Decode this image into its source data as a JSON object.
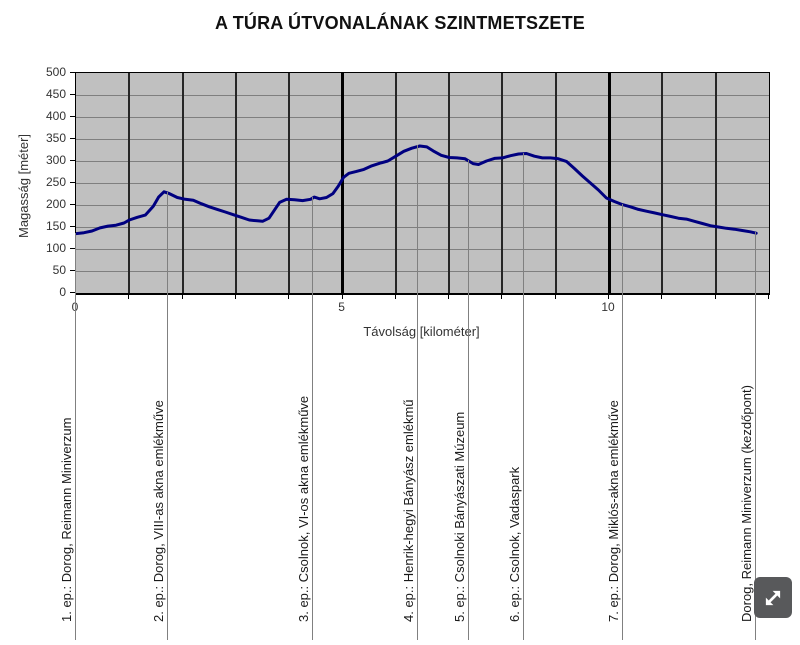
{
  "title": "A TÚRA ÚTVONALÁNAK SZINTMETSZETE",
  "chart_data": {
    "type": "line",
    "title": "A TÚRA ÚTVONALÁNAK SZINTMETSZETE",
    "xlabel": "Távolság [kilométer]",
    "ylabel": "Magasság [méter]",
    "xlim": [
      0,
      13
    ],
    "ylim": [
      0,
      500
    ],
    "y_tick_step": 50,
    "x_tick_step": 1,
    "x_tick_labels": [
      {
        "value": 0,
        "label": "0"
      },
      {
        "value": 5,
        "label": "5"
      },
      {
        "value": 10,
        "label": "10"
      }
    ],
    "x_thick_gridlines": [
      5,
      10
    ],
    "grid": "on",
    "legend": "none",
    "plot_bg_color": "#c0c0c0",
    "h_grid_color": "#7f7f7f",
    "v_grid_color": "#262626",
    "line_color": "#000080",
    "series": [
      {
        "name": "elevation-profile",
        "points": [
          [
            0.0,
            135
          ],
          [
            0.15,
            137
          ],
          [
            0.3,
            141
          ],
          [
            0.45,
            148
          ],
          [
            0.6,
            152
          ],
          [
            0.75,
            154
          ],
          [
            0.9,
            159
          ],
          [
            1.0,
            166
          ],
          [
            1.15,
            172
          ],
          [
            1.3,
            177
          ],
          [
            1.45,
            197
          ],
          [
            1.55,
            218
          ],
          [
            1.65,
            230
          ],
          [
            1.75,
            226
          ],
          [
            1.9,
            217
          ],
          [
            2.05,
            213
          ],
          [
            2.2,
            211
          ],
          [
            2.35,
            203
          ],
          [
            2.5,
            196
          ],
          [
            2.65,
            190
          ],
          [
            2.8,
            184
          ],
          [
            2.95,
            178
          ],
          [
            3.1,
            172
          ],
          [
            3.25,
            166
          ],
          [
            3.4,
            164
          ],
          [
            3.5,
            163
          ],
          [
            3.62,
            170
          ],
          [
            3.72,
            188
          ],
          [
            3.82,
            206
          ],
          [
            3.95,
            213
          ],
          [
            4.1,
            212
          ],
          [
            4.25,
            210
          ],
          [
            4.4,
            213
          ],
          [
            4.47,
            218
          ],
          [
            4.57,
            214
          ],
          [
            4.7,
            217
          ],
          [
            4.82,
            226
          ],
          [
            4.92,
            243
          ],
          [
            5.02,
            263
          ],
          [
            5.12,
            272
          ],
          [
            5.25,
            276
          ],
          [
            5.4,
            281
          ],
          [
            5.55,
            289
          ],
          [
            5.7,
            295
          ],
          [
            5.85,
            300
          ],
          [
            6.0,
            311
          ],
          [
            6.15,
            322
          ],
          [
            6.3,
            329
          ],
          [
            6.45,
            334
          ],
          [
            6.58,
            332
          ],
          [
            6.7,
            323
          ],
          [
            6.85,
            313
          ],
          [
            7.0,
            308
          ],
          [
            7.15,
            307
          ],
          [
            7.3,
            305
          ],
          [
            7.45,
            294
          ],
          [
            7.55,
            292
          ],
          [
            7.7,
            300
          ],
          [
            7.85,
            306
          ],
          [
            8.0,
            307
          ],
          [
            8.15,
            312
          ],
          [
            8.3,
            316
          ],
          [
            8.45,
            317
          ],
          [
            8.6,
            311
          ],
          [
            8.75,
            307
          ],
          [
            8.9,
            307
          ],
          [
            9.05,
            305
          ],
          [
            9.2,
            299
          ],
          [
            9.35,
            283
          ],
          [
            9.5,
            266
          ],
          [
            9.65,
            250
          ],
          [
            9.8,
            234
          ],
          [
            9.95,
            216
          ],
          [
            10.1,
            208
          ],
          [
            10.25,
            201
          ],
          [
            10.4,
            196
          ],
          [
            10.55,
            190
          ],
          [
            10.7,
            186
          ],
          [
            10.85,
            182
          ],
          [
            11.0,
            178
          ],
          [
            11.15,
            174
          ],
          [
            11.3,
            170
          ],
          [
            11.45,
            168
          ],
          [
            11.6,
            163
          ],
          [
            11.75,
            158
          ],
          [
            11.9,
            153
          ],
          [
            12.05,
            150
          ],
          [
            12.2,
            147
          ],
          [
            12.35,
            145
          ],
          [
            12.5,
            142
          ],
          [
            12.65,
            139
          ],
          [
            12.76,
            136
          ]
        ]
      }
    ],
    "waypoints": [
      {
        "km": 0.0,
        "label": "1. ep.: Dorog, Reimann Miniverzum"
      },
      {
        "km": 1.73,
        "label": "2. ep.: Dorog, VIII-as akna emlékműve"
      },
      {
        "km": 4.45,
        "label": "3. ep.: Csolnok, VI-os akna emlékműve"
      },
      {
        "km": 6.42,
        "label": "4. ep.: Henrik-hegyi Bányász emlékmű"
      },
      {
        "km": 7.37,
        "label": "5. ep.: Csolnoki Bányászati Múzeum"
      },
      {
        "km": 8.4,
        "label": "6. ep.: Csolnok, Vadaspark"
      },
      {
        "km": 10.26,
        "label": "7. ep.: Dorog, Miklós-akna emlékműve"
      },
      {
        "km": 12.76,
        "label": "Dorog, Reimann Miniverzum (kezdőpont)"
      }
    ]
  },
  "controls": {
    "expand_button_icon": "expand-arrows-icon"
  }
}
